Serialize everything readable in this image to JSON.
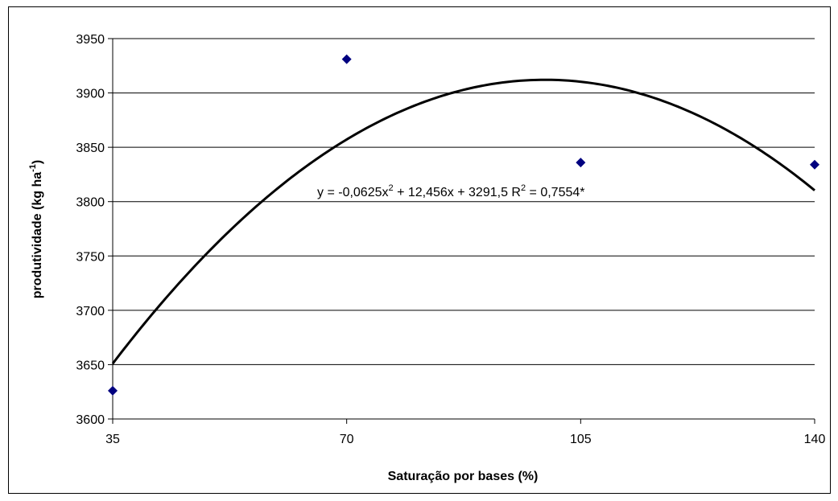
{
  "chart_data": {
    "type": "scatter",
    "xlabel": "Saturação por bases (%)",
    "ylabel_main": "produtividade (kg ha",
    "ylabel_sup": "-1",
    "ylabel_close": ")",
    "xlim": [
      35,
      140
    ],
    "ylim": [
      3600,
      3950
    ],
    "x_ticks": [
      35,
      70,
      105,
      140
    ],
    "y_ticks": [
      3600,
      3650,
      3700,
      3750,
      3800,
      3850,
      3900,
      3950
    ],
    "grid": true,
    "points": [
      {
        "x": 35,
        "y": 3626
      },
      {
        "x": 70,
        "y": 3931
      },
      {
        "x": 105,
        "y": 3836
      },
      {
        "x": 140,
        "y": 3834
      }
    ],
    "point_color": "#000080",
    "trendline": {
      "type": "polynomial",
      "coefficients": {
        "a": -0.0625,
        "b": 12.456,
        "c": 3291.5
      },
      "color": "#000000"
    },
    "equation": {
      "p1": "y = -0,0625x",
      "sup1": "2",
      "p2": " + 12,456x + 3291,5 R",
      "sup2": "2",
      "p3": " = 0,7554*"
    }
  }
}
